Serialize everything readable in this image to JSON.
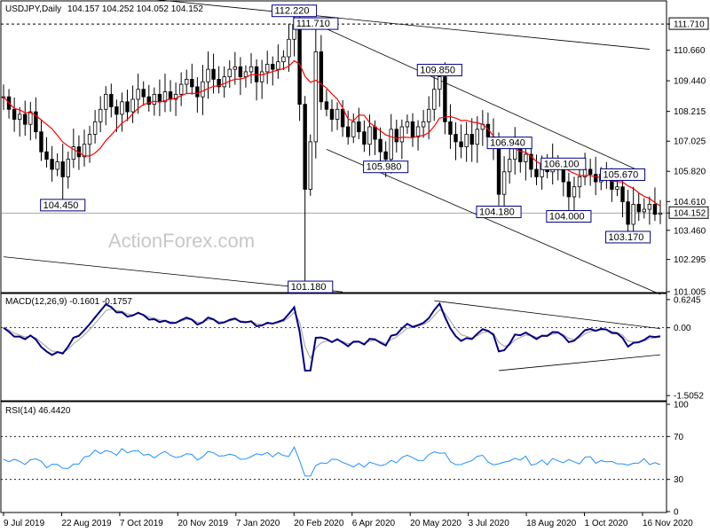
{
  "chart_data": [
    {
      "type": "candlestick",
      "title": "USDJPY,Daily",
      "ohlc_readout": "104.157 104.252 104.052 104.152",
      "ylim": [
        101.005,
        112.6
      ],
      "ticks": [
        "111.710",
        "110.660",
        "109.440",
        "108.215",
        "107.025",
        "105.820",
        "104.610",
        "104.152",
        "103.460",
        "102.295",
        "101.005"
      ],
      "ticks_values": [
        111.71,
        110.66,
        109.44,
        108.215,
        107.025,
        105.82,
        104.61,
        104.152,
        103.46,
        102.295,
        101.005
      ],
      "current_price": "104.152",
      "reference_level": "111.710",
      "x_labels": [
        "9 Jul 2019",
        "22 Aug 2019",
        "7 Oct 2019",
        "20 Nov 2019",
        "7 Jan 2020",
        "20 Feb 2020",
        "6 Apr 2020",
        "20 May 2020",
        "3 Jul 2020",
        "18 Aug 2020",
        "1 Oct 2020",
        "16 Nov 2020"
      ],
      "annotations": [
        {
          "text": "112.220",
          "price": 112.22,
          "bar": 54
        },
        {
          "text": "111.710",
          "price": 111.71,
          "bar": 58
        },
        {
          "text": "109.850",
          "price": 109.85,
          "bar": 81
        },
        {
          "text": "106.940",
          "price": 106.94,
          "bar": 94
        },
        {
          "text": "106.100",
          "price": 106.1,
          "bar": 104
        },
        {
          "text": "105.670",
          "price": 105.67,
          "bar": 115
        },
        {
          "text": "105.980",
          "price": 105.98,
          "bar": 71
        },
        {
          "text": "104.450",
          "price": 104.45,
          "bar": 11
        },
        {
          "text": "104.180",
          "price": 104.18,
          "bar": 92
        },
        {
          "text": "104.000",
          "price": 104.0,
          "bar": 105
        },
        {
          "text": "103.170",
          "price": 103.17,
          "bar": 116
        },
        {
          "text": "101.180",
          "price": 101.18,
          "bar": 57
        }
      ],
      "series": [
        {
          "name": "price",
          "closes": [
            108.8,
            108.3,
            107.9,
            108.1,
            107.7,
            108.2,
            107.4,
            106.6,
            106.3,
            105.9,
            106.2,
            105.6,
            106.3,
            106.8,
            106.4,
            106.9,
            107.3,
            107.8,
            108.3,
            108.9,
            108.4,
            108.1,
            108.6,
            108.2,
            108.7,
            109.1,
            108.8,
            108.5,
            108.9,
            108.6,
            109.0,
            108.7,
            108.9,
            109.3,
            109.5,
            109.2,
            108.8,
            109.4,
            109.9,
            109.5,
            109.2,
            109.6,
            109.9,
            110.0,
            109.6,
            109.8,
            110.0,
            109.4,
            109.8,
            110.1,
            109.9,
            110.2,
            110.4,
            111.1,
            111.7,
            108.5,
            105.1,
            107.0,
            110.6,
            108.6,
            108.3,
            107.9,
            108.3,
            107.6,
            107.2,
            107.8,
            107.4,
            106.9,
            107.6,
            107.1,
            106.6,
            106.3,
            107.5,
            107.0,
            107.6,
            107.8,
            107.2,
            107.6,
            107.8,
            108.3,
            109.1,
            109.6,
            107.8,
            107.3,
            107.0,
            106.8,
            107.3,
            106.9,
            107.5,
            107.7,
            107.2,
            106.8,
            104.9,
            105.8,
            106.3,
            106.9,
            106.2,
            106.5,
            105.9,
            105.6,
            106.1,
            105.8,
            106.2,
            105.9,
            105.4,
            104.8,
            105.2,
            105.6,
            105.9,
            105.7,
            105.4,
            105.7,
            105.5,
            105.1,
            105.2,
            104.6,
            103.7,
            104.5,
            104.2,
            104.3,
            104.5,
            104.1,
            104.15
          ]
        },
        {
          "name": "MA",
          "note": "moving average shown in red; values derived from price"
        }
      ]
    },
    {
      "type": "line",
      "title": "MACD(12,26,9) -0.1601 -0.1757",
      "ticks": [
        "0.6245",
        "0.00",
        "-1.5052"
      ],
      "ticks_values": [
        0.6245,
        0.0,
        -1.5052
      ],
      "ylim": [
        -1.62,
        0.72
      ]
    },
    {
      "type": "line",
      "title": "RSI(14) 46.4420",
      "ticks": [
        "100",
        "70",
        "30",
        "0"
      ],
      "ticks_values": [
        100,
        70,
        30,
        0
      ],
      "ylim": [
        0,
        100
      ]
    }
  ],
  "watermark": "ActionForex.com",
  "colors": {
    "price": "#000000",
    "ma": "#ff0000",
    "macd": "#000080",
    "signal": "#a0a0a0",
    "rsi": "#1e90ff",
    "grid": "#000000"
  }
}
